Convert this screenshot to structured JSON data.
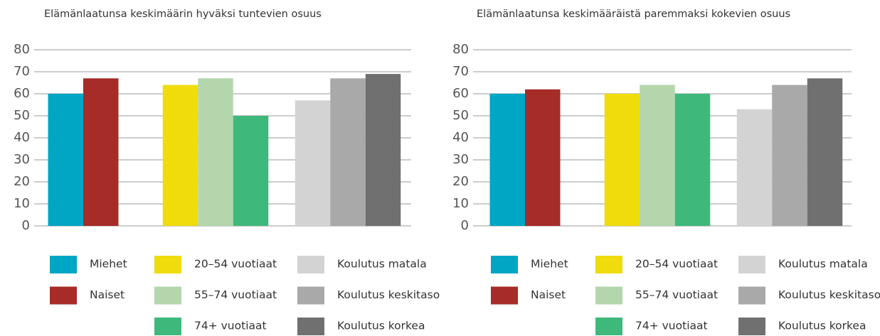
{
  "chart_data": [
    {
      "type": "bar",
      "title": "Elämänlaatunsa keskimäärin hyväksi tuntevien osuus",
      "categories": [
        null,
        null,
        null
      ],
      "series": [
        {
          "name": "Miehet",
          "color": "#00a6c4",
          "values": [
            60,
            null,
            null
          ]
        },
        {
          "name": "Naiset",
          "color": "#a52c27",
          "values": [
            67,
            null,
            null
          ]
        },
        {
          "name": "20–54 vuotiaat",
          "color": "#f0db0c",
          "values": [
            null,
            64,
            null
          ]
        },
        {
          "name": "55–74 vuotiaat",
          "color": "#b3d6ac",
          "values": [
            null,
            67,
            null
          ]
        },
        {
          "name": "74+ vuotiaat",
          "color": "#3fb97b",
          "values": [
            null,
            50,
            null
          ]
        },
        {
          "name": "Koulutus matala",
          "color": "#d3d3d3",
          "values": [
            null,
            null,
            57
          ]
        },
        {
          "name": "Koulutus keskitaso",
          "color": "#a9a9a9",
          "values": [
            null,
            null,
            67
          ]
        },
        {
          "name": "Koulutus korkea",
          "color": "#707070",
          "values": [
            null,
            null,
            69
          ]
        }
      ],
      "ylim": [
        0,
        80
      ],
      "yticks": [
        0,
        10,
        20,
        30,
        40,
        50,
        60,
        70,
        80
      ],
      "grid": true
    },
    {
      "type": "bar",
      "title": "Elämänlaatunsa keskimääräistä paremmaksi kokevien osuus",
      "categories": [
        null,
        null,
        null
      ],
      "series": [
        {
          "name": "Miehet",
          "color": "#00a6c4",
          "values": [
            60,
            null,
            null
          ]
        },
        {
          "name": "Naiset",
          "color": "#a52c27",
          "values": [
            62,
            null,
            null
          ]
        },
        {
          "name": "20–54 vuotiaat",
          "color": "#f0db0c",
          "values": [
            null,
            60,
            null
          ]
        },
        {
          "name": "55–74 vuotiaat",
          "color": "#b3d6ac",
          "values": [
            null,
            64,
            null
          ]
        },
        {
          "name": "74+ vuotiaat",
          "color": "#3fb97b",
          "values": [
            null,
            60,
            null
          ]
        },
        {
          "name": "Koulutus matala",
          "color": "#d3d3d3",
          "values": [
            null,
            null,
            53
          ]
        },
        {
          "name": "Koulutus keskitaso",
          "color": "#a9a9a9",
          "values": [
            null,
            null,
            64
          ]
        },
        {
          "name": "Koulutus korkea",
          "color": "#707070",
          "values": [
            null,
            null,
            67
          ]
        }
      ],
      "ylim": [
        0,
        80
      ],
      "yticks": [
        0,
        10,
        20,
        30,
        40,
        50,
        60,
        70,
        80
      ],
      "grid": true
    }
  ]
}
